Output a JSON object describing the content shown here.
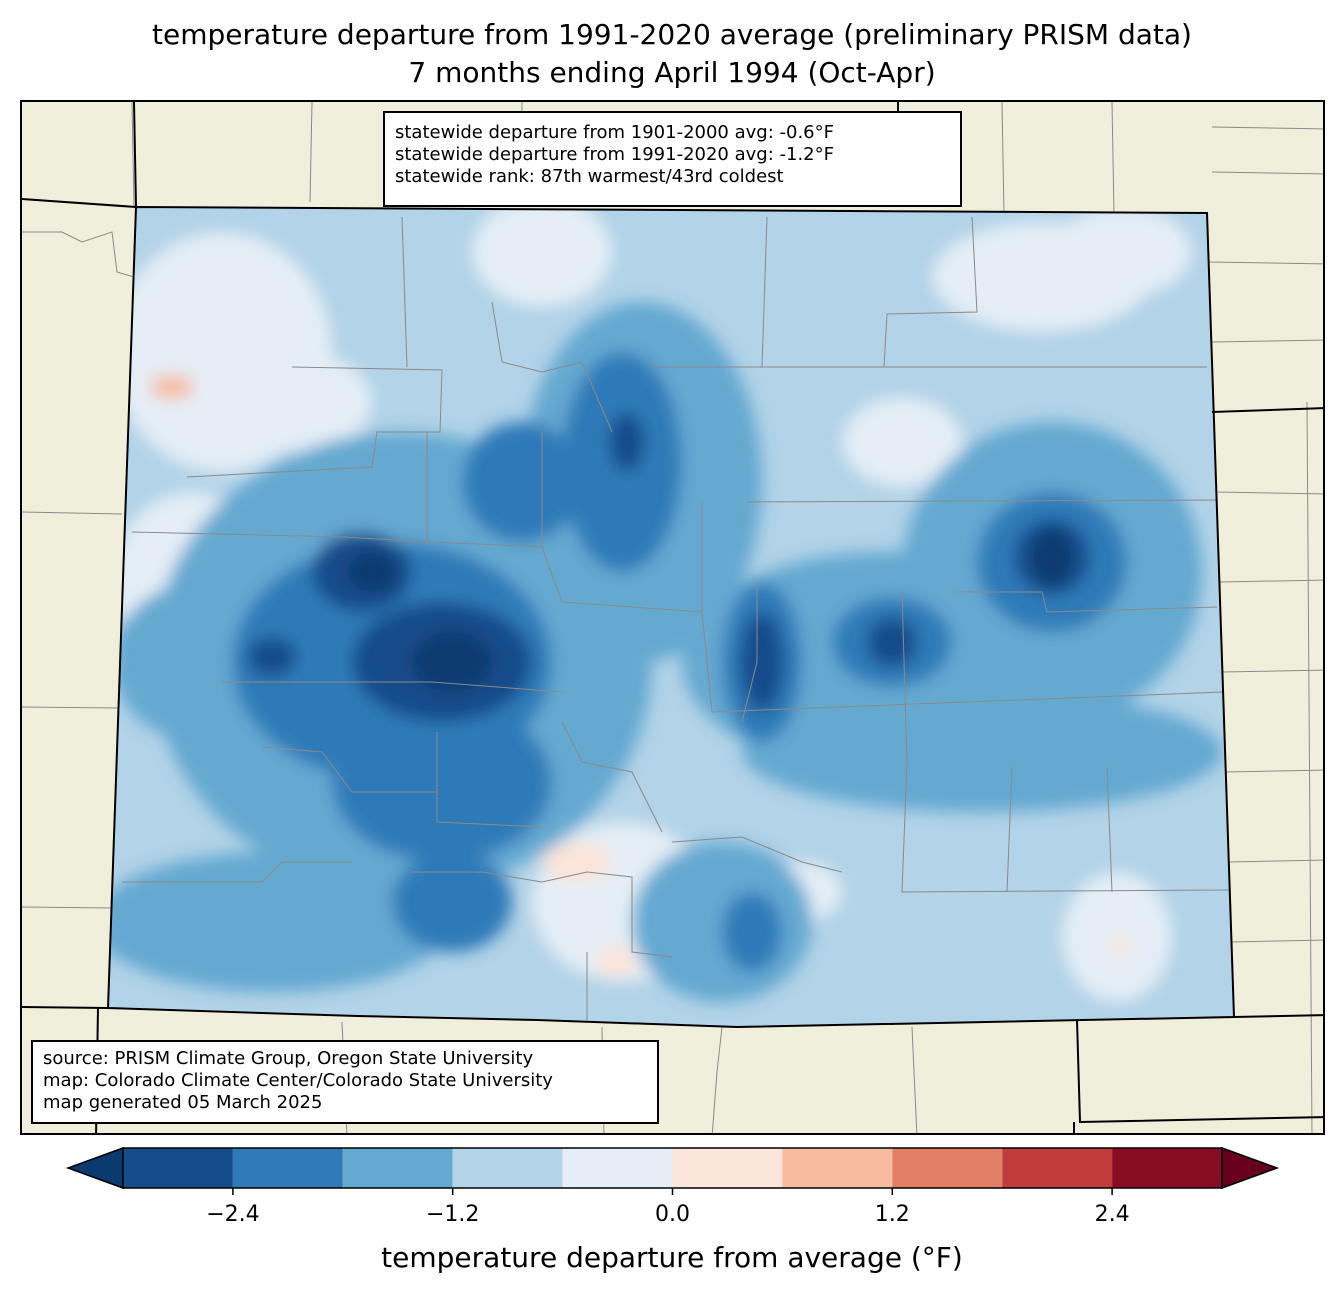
{
  "title": {
    "line1": "temperature departure from 1991-2020 average (preliminary PRISM data)",
    "line2": "7 months ending April 1994 (Oct-Apr)"
  },
  "stats": {
    "line1": "statewide departure from 1901-2000 avg: -0.6°F",
    "line2": "statewide departure from 1991-2020 avg: -1.2°F",
    "line3": "statewide rank: 87th warmest/43rd coldest"
  },
  "source": {
    "line1": "source: PRISM Climate Group, Oregon State University",
    "line2": "map: Colorado Climate Center/Colorado State University",
    "line3": "map generated 05 March 2025"
  },
  "colorbar": {
    "label": "temperature departure from average (°F)",
    "ticks": [
      "−2.4",
      "−1.2",
      "0.0",
      "1.2",
      "2.4"
    ],
    "tick_values": [
      -2.4,
      -1.2,
      0.0,
      1.2,
      2.4
    ],
    "bin_edges": [
      -3.0,
      -2.4,
      -1.8,
      -1.2,
      -0.6,
      0.0,
      0.6,
      1.2,
      1.8,
      2.4,
      3.0
    ],
    "colors": [
      "#0b3a6f",
      "#154c8a",
      "#2f7ab8",
      "#65a9d1",
      "#b2d3e8",
      "#e5eef6",
      "#fbe4d9",
      "#f8bba0",
      "#e37f66",
      "#c03b3b",
      "#880c24",
      "#67001f"
    ]
  },
  "map_colors": {
    "land_background": "#f0efdc",
    "state_border": "#000000",
    "county_border": "#8a8a8a"
  }
}
